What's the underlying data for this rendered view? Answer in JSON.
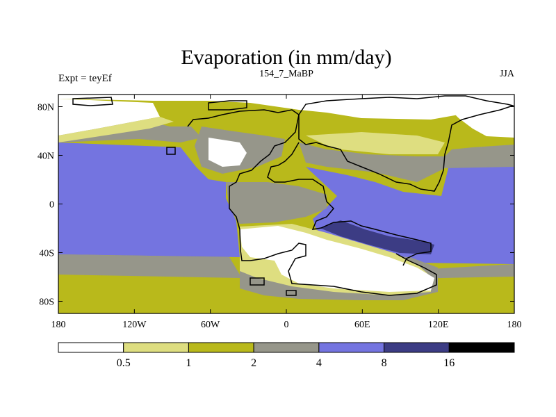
{
  "chart_data": {
    "type": "heatmap",
    "title": "Evaporation (in mm/day)",
    "left_string": "Expt = teyEf",
    "center_string": "154_7_MaBP",
    "right_string": "JJA",
    "x_range": [
      -180,
      180
    ],
    "y_range": [
      -90,
      90
    ],
    "x_ticks": [
      {
        "value": -180,
        "label": "180"
      },
      {
        "value": -120,
        "label": "120W"
      },
      {
        "value": -60,
        "label": "60W"
      },
      {
        "value": 0,
        "label": "0"
      },
      {
        "value": 60,
        "label": "60E"
      },
      {
        "value": 120,
        "label": "120E"
      },
      {
        "value": 180,
        "label": "180"
      }
    ],
    "y_ticks": [
      {
        "value": 80,
        "label": "80N"
      },
      {
        "value": 40,
        "label": "40N"
      },
      {
        "value": 0,
        "label": "0"
      },
      {
        "value": -40,
        "label": "40S"
      },
      {
        "value": -80,
        "label": "80S"
      }
    ],
    "levels": [
      "0.5",
      "1",
      "2",
      "4",
      "8",
      "16"
    ],
    "colors": [
      "#ffffff",
      "#dede80",
      "#b9b91b",
      "#96968a",
      "#7474e0",
      "#3c3c84",
      "#000000"
    ]
  }
}
